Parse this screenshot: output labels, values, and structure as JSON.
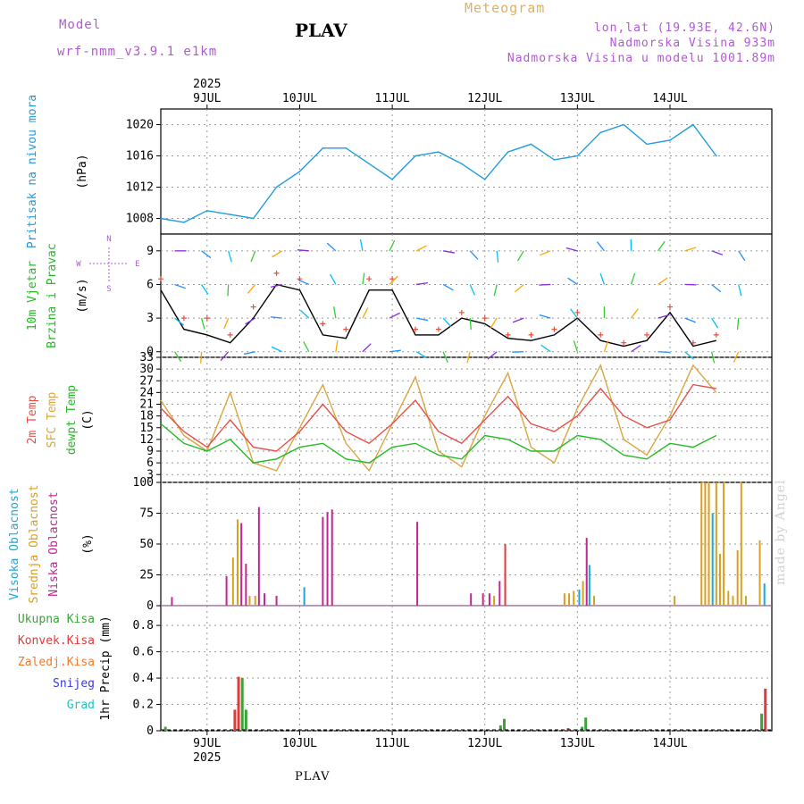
{
  "header": {
    "model_label": "Model",
    "model_name": "wrf-nmm_v3.9.1  e1km",
    "station": "PLAV",
    "title": "Meteogram",
    "lonlat": "lon,lat (19.93E, 42.6N)",
    "elevation": "Nadmorska Visina 933m",
    "model_elevation": "Nadmorska Visina u modelu 1001.89m",
    "footer_station": "PLAV",
    "watermark": "made by Angel"
  },
  "colors": {
    "pressure": "#1e9be0",
    "wind_speed": "#000000",
    "wind_gust": "#e8503c",
    "temp2m": "#e8504a",
    "sfc_temp": "#d9a640",
    "dewpt": "#22bb22",
    "high_cloud": "#19a8d8",
    "mid_cloud": "#d9a020",
    "low_cloud": "#c02890",
    "total_rain": "#3aa33a",
    "conv_rain": "#e03a3a",
    "freezing_rain": "#f07a30",
    "snow": "#3a3ae0",
    "hail": "#22c0c0"
  },
  "chart_data": [
    {
      "type": "line",
      "panel": "pressure",
      "ylabel_main": "Pritisak na nivou mora",
      "unit": "(hPa)",
      "ylim": [
        1006,
        1022
      ],
      "yticks": [
        1008,
        1012,
        1016,
        1020
      ],
      "x_day": [
        0,
        0.25,
        0.5,
        0.75,
        1,
        1.25,
        1.5,
        1.75,
        2,
        2.25,
        2.5,
        2.75,
        3,
        3.25,
        3.5,
        3.75,
        4,
        4.25,
        4.5,
        4.75,
        5,
        5.25,
        5.5,
        5.75,
        6
      ],
      "values": [
        1008,
        1007.5,
        1009,
        1008.5,
        1008,
        1012,
        1014,
        1017,
        1017,
        1015,
        1013,
        1016,
        1016.5,
        1015,
        1013,
        1016.5,
        1017.5,
        1015.5,
        1016,
        1019,
        1020,
        1017.5,
        1018,
        1020,
        1016
      ]
    },
    {
      "type": "line",
      "panel": "wind",
      "ylabel_main": "10m Vjetar",
      "ylabel_sub": "Brzina i Pravac",
      "unit": "(m/s)",
      "compass": [
        "N",
        "W",
        "E",
        "S"
      ],
      "ylim": [
        -0.5,
        10.5
      ],
      "yticks": [
        0,
        3,
        6,
        9
      ],
      "x_day": [
        0,
        0.25,
        0.5,
        0.75,
        1,
        1.25,
        1.5,
        1.75,
        2,
        2.25,
        2.5,
        2.75,
        3,
        3.25,
        3.5,
        3.75,
        4,
        4.25,
        4.5,
        4.75,
        5,
        5.25,
        5.5,
        5.75,
        6
      ],
      "speed": [
        5.5,
        2,
        1.5,
        0.8,
        3,
        6,
        5.5,
        1.5,
        1.2,
        5.5,
        5.5,
        1.5,
        1.5,
        3,
        2.5,
        1.2,
        1,
        1.5,
        3,
        1,
        0.5,
        1,
        3.5,
        0.5,
        1
      ],
      "gust": [
        6.5,
        3,
        3,
        1.5,
        4,
        7,
        6.5,
        2.5,
        2,
        6.5,
        6.5,
        2,
        2,
        3.5,
        3,
        1.5,
        1.5,
        2,
        3.5,
        1.5,
        0.8,
        1.5,
        4,
        0.8,
        1.5
      ]
    },
    {
      "type": "line",
      "panel": "temperature",
      "series_labels": [
        "2m Temp",
        "SFC Temp",
        "dewpt Temp"
      ],
      "unit": "(C)",
      "ylim": [
        1,
        33
      ],
      "yticks": [
        3,
        6,
        9,
        12,
        15,
        18,
        21,
        24,
        27,
        30,
        33
      ],
      "x_day": [
        0,
        0.25,
        0.5,
        0.75,
        1,
        1.25,
        1.5,
        1.75,
        2,
        2.25,
        2.5,
        2.75,
        3,
        3.25,
        3.5,
        3.75,
        4,
        4.25,
        4.5,
        4.75,
        5,
        5.25,
        5.5,
        5.75,
        6
      ],
      "temp2m": [
        20,
        14,
        10,
        17,
        10,
        9,
        14,
        21,
        14,
        11,
        16,
        22,
        14,
        11,
        17,
        23,
        16,
        14,
        18,
        25,
        18,
        15,
        17,
        26,
        25
      ],
      "sfc_temp": [
        22,
        13,
        9,
        24,
        6,
        4,
        15,
        26,
        11,
        4,
        16,
        28,
        9,
        5,
        18,
        29,
        10,
        6,
        20,
        31,
        12,
        8,
        18,
        31,
        24
      ],
      "dewpt": [
        16,
        11,
        9,
        12,
        6,
        7,
        10,
        11,
        7,
        6,
        10,
        11,
        8,
        7,
        13,
        12,
        9,
        9,
        13,
        12,
        8,
        7,
        11,
        10,
        13
      ]
    },
    {
      "type": "bar",
      "panel": "clouds",
      "series_labels": [
        "Visoka Oblacnost",
        "Srednja Oblacnost",
        "Niska Oblacnost"
      ],
      "unit": "(%)",
      "ylim": [
        0,
        100
      ],
      "yticks": [
        0,
        25,
        50,
        75,
        100
      ],
      "bars": [
        {
          "x": 0.12,
          "s": "low",
          "v": 7
        },
        {
          "x": 0.71,
          "s": "low",
          "v": 24
        },
        {
          "x": 0.78,
          "s": "mid",
          "v": 39
        },
        {
          "x": 0.83,
          "s": "mid",
          "v": 70
        },
        {
          "x": 0.87,
          "s": "low",
          "v": 67
        },
        {
          "x": 0.92,
          "s": "low",
          "v": 34
        },
        {
          "x": 0.96,
          "s": "mid",
          "v": 8
        },
        {
          "x": 1.02,
          "s": "mid",
          "v": 8
        },
        {
          "x": 1.06,
          "s": "low",
          "v": 80
        },
        {
          "x": 1.12,
          "s": "low",
          "v": 10
        },
        {
          "x": 1.25,
          "s": "low",
          "v": 8
        },
        {
          "x": 1.55,
          "s": "high",
          "v": 15
        },
        {
          "x": 1.75,
          "s": "low",
          "v": 72
        },
        {
          "x": 1.8,
          "s": "low",
          "v": 76
        },
        {
          "x": 1.85,
          "s": "low",
          "v": 78
        },
        {
          "x": 2.77,
          "s": "low",
          "v": 68
        },
        {
          "x": 3.35,
          "s": "low",
          "v": 10
        },
        {
          "x": 3.48,
          "s": "low",
          "v": 10
        },
        {
          "x": 3.55,
          "s": "low",
          "v": 10
        },
        {
          "x": 3.6,
          "s": "mid",
          "v": 8
        },
        {
          "x": 3.66,
          "s": "low",
          "v": 20
        },
        {
          "x": 3.72,
          "s": "conv",
          "v": 50
        },
        {
          "x": 4.36,
          "s": "mid",
          "v": 10
        },
        {
          "x": 4.41,
          "s": "mid",
          "v": 10
        },
        {
          "x": 4.46,
          "s": "mid",
          "v": 12
        },
        {
          "x": 4.52,
          "s": "high",
          "v": 13
        },
        {
          "x": 4.56,
          "s": "mid",
          "v": 20
        },
        {
          "x": 4.6,
          "s": "low",
          "v": 55
        },
        {
          "x": 4.63,
          "s": "high",
          "v": 33
        },
        {
          "x": 4.68,
          "s": "mid",
          "v": 8
        },
        {
          "x": 5.55,
          "s": "mid",
          "v": 8
        },
        {
          "x": 5.84,
          "s": "mid",
          "v": 100
        },
        {
          "x": 5.88,
          "s": "mid",
          "v": 100
        },
        {
          "x": 5.92,
          "s": "mid",
          "v": 100
        },
        {
          "x": 5.96,
          "s": "high",
          "v": 75
        },
        {
          "x": 6.0,
          "s": "mid",
          "v": 100
        },
        {
          "x": 6.04,
          "s": "mid",
          "v": 42
        },
        {
          "x": 6.08,
          "s": "mid",
          "v": 100
        },
        {
          "x": 6.13,
          "s": "mid",
          "v": 12
        },
        {
          "x": 6.18,
          "s": "mid",
          "v": 8
        },
        {
          "x": 6.23,
          "s": "mid",
          "v": 45
        },
        {
          "x": 6.27,
          "s": "mid",
          "v": 100
        },
        {
          "x": 6.32,
          "s": "mid",
          "v": 8
        },
        {
          "x": 6.47,
          "s": "mid",
          "v": 53
        },
        {
          "x": 6.52,
          "s": "high",
          "v": 18
        }
      ]
    },
    {
      "type": "bar",
      "panel": "precipitation",
      "series_labels": [
        "Ukupna Kisa",
        "Konvek.Kisa",
        "Zaledj.Kisa",
        "Snijeg",
        "Grad"
      ],
      "ylabel": "1hr Precip (mm)",
      "ylim": [
        0,
        0.95
      ],
      "yticks": [
        0,
        0.2,
        0.4,
        0.6,
        0.8
      ],
      "bars": [
        {
          "x": 0.05,
          "s": "total",
          "v": 0.03
        },
        {
          "x": 0.8,
          "s": "conv",
          "v": 0.16
        },
        {
          "x": 0.84,
          "s": "conv",
          "v": 0.41
        },
        {
          "x": 0.88,
          "s": "total",
          "v": 0.4
        },
        {
          "x": 0.92,
          "s": "total",
          "v": 0.16
        },
        {
          "x": 3.67,
          "s": "total",
          "v": 0.04
        },
        {
          "x": 3.71,
          "s": "total",
          "v": 0.09
        },
        {
          "x": 4.4,
          "s": "conv",
          "v": 0.02
        },
        {
          "x": 4.55,
          "s": "total",
          "v": 0.03
        },
        {
          "x": 4.59,
          "s": "total",
          "v": 0.1
        },
        {
          "x": 6.49,
          "s": "total",
          "v": 0.13
        },
        {
          "x": 6.53,
          "s": "conv",
          "v": 0.32
        }
      ]
    }
  ],
  "x_axis": {
    "year": "2025",
    "day_labels": [
      "9JUL",
      "10JUL",
      "11JUL",
      "12JUL",
      "13JUL",
      "14JUL"
    ],
    "day_positions": [
      0.5,
      1.5,
      2.5,
      3.5,
      4.5,
      5.5
    ],
    "xlim": [
      0,
      6.6
    ]
  }
}
